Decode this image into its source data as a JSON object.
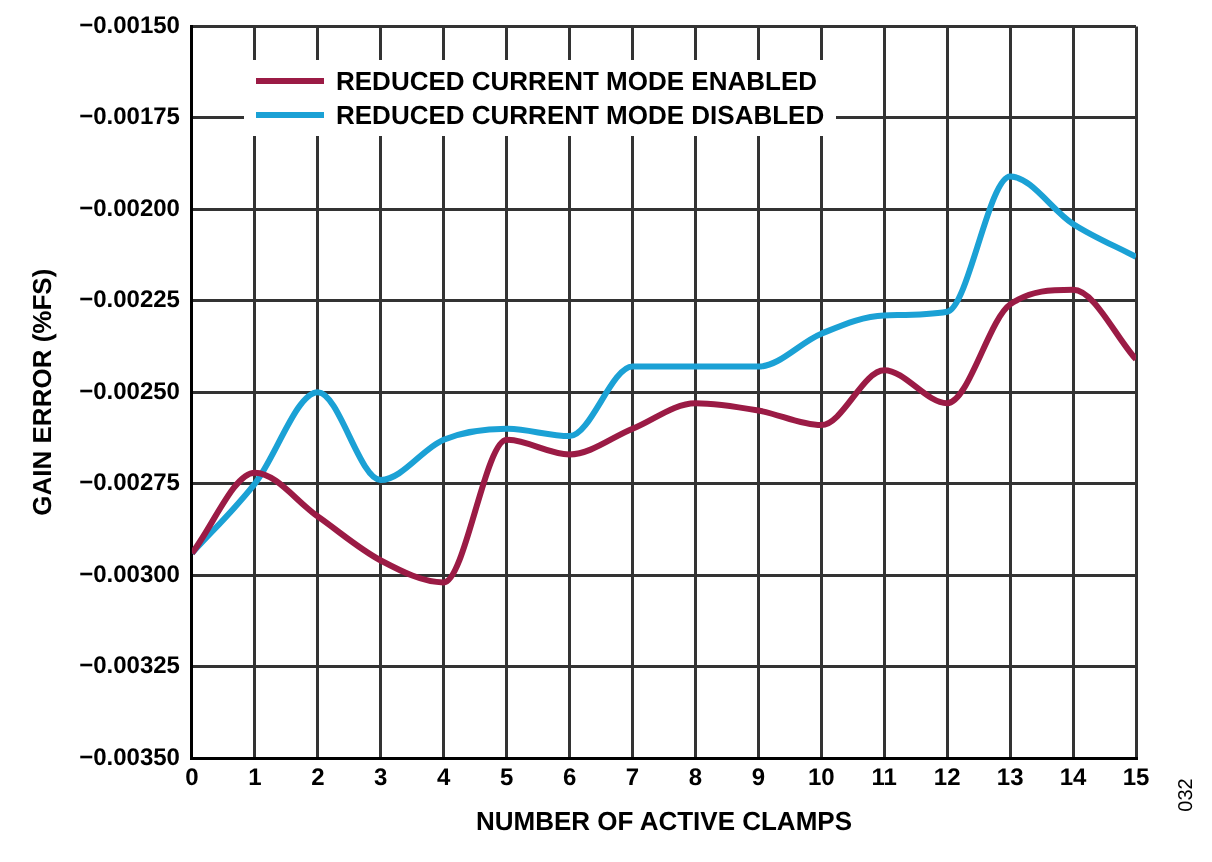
{
  "chart_data": {
    "type": "line",
    "xlabel": "NUMBER OF ACTIVE CLAMPS",
    "ylabel": "GAIN ERROR (%FS)",
    "x": [
      0,
      1,
      2,
      3,
      4,
      5,
      6,
      7,
      8,
      9,
      10,
      11,
      12,
      13,
      14,
      15
    ],
    "series": [
      {
        "name": "REDUCED CURRENT MODE ENABLED",
        "color": "#9b1b45",
        "values": [
          -0.00294,
          -0.00272,
          -0.00284,
          -0.00296,
          -0.00302,
          -0.00263,
          -0.00267,
          -0.0026,
          -0.00253,
          -0.00255,
          -0.00259,
          -0.00244,
          -0.00253,
          -0.00226,
          -0.00222,
          -0.00241
        ]
      },
      {
        "name": "REDUCED CURRENT MODE DISABLED",
        "color": "#1ba1d5",
        "values": [
          -0.00294,
          -0.00275,
          -0.0025,
          -0.00274,
          -0.00263,
          -0.0026,
          -0.00262,
          -0.00243,
          -0.00243,
          -0.00243,
          -0.00234,
          -0.00229,
          -0.00228,
          -0.00191,
          -0.00204,
          -0.00213
        ]
      }
    ],
    "xlim": [
      0,
      15
    ],
    "xticks": [
      0,
      1,
      2,
      3,
      4,
      5,
      6,
      7,
      8,
      9,
      10,
      11,
      12,
      13,
      14,
      15
    ],
    "ylim": [
      -0.0035,
      -0.0015
    ],
    "yticks": [
      {
        "value": -0.0035,
        "label": "−0.00350"
      },
      {
        "value": -0.00325,
        "label": "−0.00325"
      },
      {
        "value": -0.003,
        "label": "−0.00300"
      },
      {
        "value": -0.00275,
        "label": "−0.00275"
      },
      {
        "value": -0.0025,
        "label": "−0.00250"
      },
      {
        "value": -0.00225,
        "label": "−0.00225"
      },
      {
        "value": -0.002,
        "label": "−0.00200"
      },
      {
        "value": -0.00175,
        "label": "−0.00175"
      },
      {
        "value": -0.0015,
        "label": "−0.00150"
      }
    ],
    "grid": true,
    "legend": "top left",
    "marker": "none",
    "line_style": "solid",
    "annotations": [
      "032"
    ]
  }
}
